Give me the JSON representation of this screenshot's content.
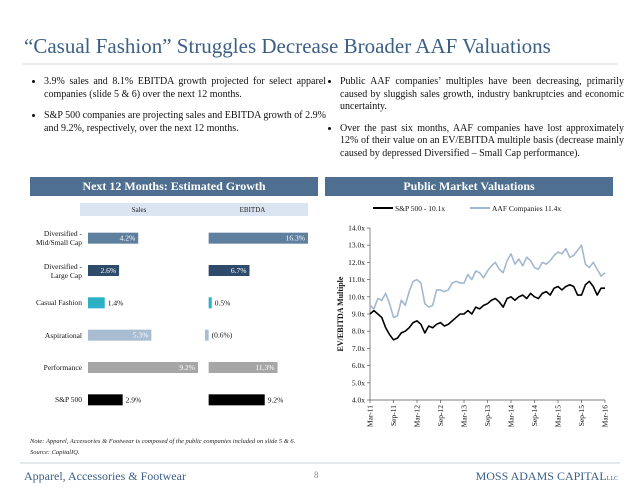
{
  "title": "“Casual Fashion” Struggles Decrease Broader AAF Valuations",
  "bullets_left": [
    "3.9% sales and 8.1% EBITDA growth projected for select apparel companies (slide 5 & 6) over the next 12 months.",
    "S&P 500 companies are projecting sales and EBITDA growth of 2.9% and 9.2%, respectively, over the next 12 months."
  ],
  "bullets_right": [
    "Public AAF companies’ multiples have been decreasing, primarily caused by sluggish sales growth, industry bankruptcies and economic uncertainty.",
    "Over the past six months, AAF companies have lost approximately 12% of their value on an EV/EBITDA multiple basis (decrease mainly caused by depressed Diversified – Small Cap performance)."
  ],
  "chart_data": [
    {
      "type": "bar",
      "orientation": "horizontal",
      "title": "Next 12 Months: Estimated Growth",
      "categories": [
        "Diversified -\nMid/Small Cap",
        "Diversified -\nLarge Cap",
        "Casual Fashion",
        "Aspirational",
        "Performance",
        "S&P 500"
      ],
      "colors": [
        "#5f7f9e",
        "#2f4b6c",
        "#2bb0c4",
        "#a9bdd2",
        "#a6a6a6",
        "#000000"
      ],
      "series": [
        {
          "name": "Sales",
          "values": [
            4.2,
            2.6,
            1.4,
            5.3,
            9.2,
            2.9
          ],
          "value_labels": [
            "4.2%",
            "2.6%",
            "1.4%",
            "5.3%",
            "9.2%",
            "2.9%"
          ]
        },
        {
          "name": "EBITDA",
          "values": [
            16.3,
            6.7,
            0.5,
            -0.6,
            11.3,
            9.2
          ],
          "value_labels": [
            "16.3%",
            "6.7%",
            "0.5%",
            "(0.6%)",
            "11.3%",
            "9.2%"
          ]
        }
      ]
    },
    {
      "type": "line",
      "title": "Public Market Valuations",
      "y_label": "EV/EBITDA Multiple",
      "categories": [
        "Mar-11",
        null,
        null,
        null,
        null,
        null,
        "Sep-11",
        null,
        null,
        null,
        null,
        null,
        "Mar-12",
        null,
        null,
        null,
        null,
        null,
        "Sep-12",
        null,
        null,
        null,
        null,
        null,
        "Mar-13",
        null,
        null,
        null,
        null,
        null,
        "Sep-13",
        null,
        null,
        null,
        null,
        null,
        "Mar-14",
        null,
        null,
        null,
        null,
        null,
        "Sep-14",
        null,
        null,
        null,
        null,
        null,
        "Mar-15",
        null,
        null,
        null,
        null,
        null,
        "Sep-15",
        null,
        null,
        null,
        null,
        null,
        "Mar-16"
      ],
      "ylim": [
        4,
        14
      ],
      "yticks": [
        {
          "value": 4,
          "label": "4.0x"
        },
        {
          "value": 5,
          "label": "5.0x"
        },
        {
          "value": 6,
          "label": "6.0x"
        },
        {
          "value": 7,
          "label": "7.0x"
        },
        {
          "value": 8,
          "label": "8.0x"
        },
        {
          "value": 9,
          "label": "9.0x"
        },
        {
          "value": 10,
          "label": "10.0x"
        },
        {
          "value": 11,
          "label": "11.0x"
        },
        {
          "value": 12,
          "label": "12.0x"
        },
        {
          "value": 13,
          "label": "13.0x"
        },
        {
          "value": 14,
          "label": "14.0x"
        }
      ],
      "series": [
        {
          "name": "S&P 500 - 10.1x",
          "color": "#000000",
          "values": [
            9.0,
            9.2,
            9.0,
            8.8,
            8.2,
            7.8,
            7.5,
            7.6,
            7.9,
            8.0,
            8.2,
            8.5,
            8.6,
            8.4,
            7.9,
            8.3,
            8.2,
            8.4,
            8.5,
            8.3,
            8.4,
            8.6,
            8.8,
            9.0,
            9.0,
            9.2,
            9.0,
            9.4,
            9.3,
            9.5,
            9.6,
            9.8,
            9.9,
            9.7,
            9.4,
            9.9,
            10.0,
            9.8,
            10.0,
            10.1,
            9.9,
            10.2,
            10.0,
            9.9,
            10.2,
            10.3,
            10.1,
            10.5,
            10.6,
            10.4,
            10.6,
            10.7,
            10.6,
            10.1,
            10.1,
            10.7,
            10.9,
            10.6,
            10.1,
            10.5,
            10.5
          ]
        },
        {
          "name": "AAF Companies 11.4x",
          "color": "#a3b8d0",
          "values": [
            9.5,
            9.3,
            9.9,
            9.8,
            10.2,
            9.6,
            8.8,
            8.9,
            9.8,
            9.5,
            10.3,
            10.9,
            11.0,
            10.8,
            9.6,
            9.4,
            9.5,
            10.4,
            10.4,
            10.3,
            10.4,
            10.8,
            10.9,
            10.8,
            10.8,
            11.3,
            11.0,
            11.5,
            11.4,
            11.1,
            11.5,
            11.8,
            12.0,
            11.6,
            11.4,
            12.1,
            12.5,
            11.9,
            12.2,
            11.8,
            12.3,
            12.1,
            11.7,
            11.6,
            12.0,
            11.9,
            12.1,
            12.4,
            12.6,
            12.5,
            12.8,
            12.3,
            12.4,
            12.7,
            13.0,
            11.9,
            11.7,
            12.0,
            11.6,
            11.2,
            11.4
          ]
        }
      ]
    }
  ],
  "note": "Note: Apparel, Accessories & Footwear is composed of the public companies included on slide 5 & 6.",
  "source": "Source: CapitalIQ.",
  "footer": {
    "left": "Apparel, Accessories & Footwear",
    "page": "8",
    "brand": "MOSS ADAMS CAPITAL",
    "suffix": "LLC"
  }
}
